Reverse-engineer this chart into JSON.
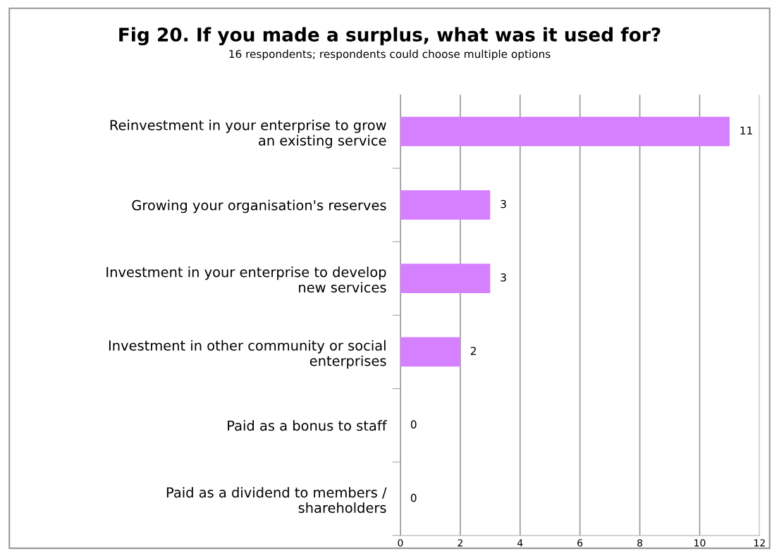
{
  "chart_data": {
    "type": "bar",
    "orientation": "horizontal",
    "title": "Fig 20. If you made a surplus, what was it used for?",
    "subtitle": "16 respondents; respondents could choose multiple options",
    "categories": [
      "Reinvestment in your enterprise to grow an existing service",
      "Growing your organisation's reserves",
      "Investment in your enterprise to develop new services",
      "Investment in other community or social enterprises",
      "Paid as a bonus to staff",
      "Paid as a dividend to members / shareholders"
    ],
    "values": [
      11,
      3,
      3,
      2,
      0,
      0
    ],
    "color": "#d580ff",
    "xlim": [
      0,
      12
    ],
    "xticks": [
      0,
      2,
      4,
      6,
      8,
      10,
      12
    ],
    "grid": "x",
    "data_labels": true
  }
}
